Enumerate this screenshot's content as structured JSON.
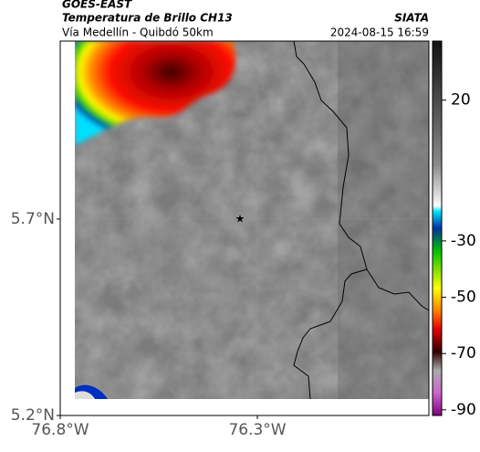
{
  "header": {
    "satellite": "GOES-EAST",
    "product": "Temperatura de Brillo CH13",
    "region": "Vía Medellín - Quibdó 50km",
    "organization": "SIATA",
    "timestamp": "2024-08-15 16:59"
  },
  "map": {
    "xlim": [
      -76.8,
      -75.865
    ],
    "ylim": [
      5.2,
      6.153
    ],
    "xticks": [
      {
        "value": -76.8,
        "label": "76.8°W"
      },
      {
        "value": -76.3,
        "label": "76.3°W"
      }
    ],
    "yticks": [
      {
        "value": 5.7,
        "label": "5.7°N"
      },
      {
        "value": 5.2,
        "label": "5.2°N"
      }
    ]
  },
  "colorbar": {
    "lim": [
      -92,
      41
    ],
    "ticks": [
      20,
      -30,
      -50,
      -70,
      -90
    ]
  }
}
